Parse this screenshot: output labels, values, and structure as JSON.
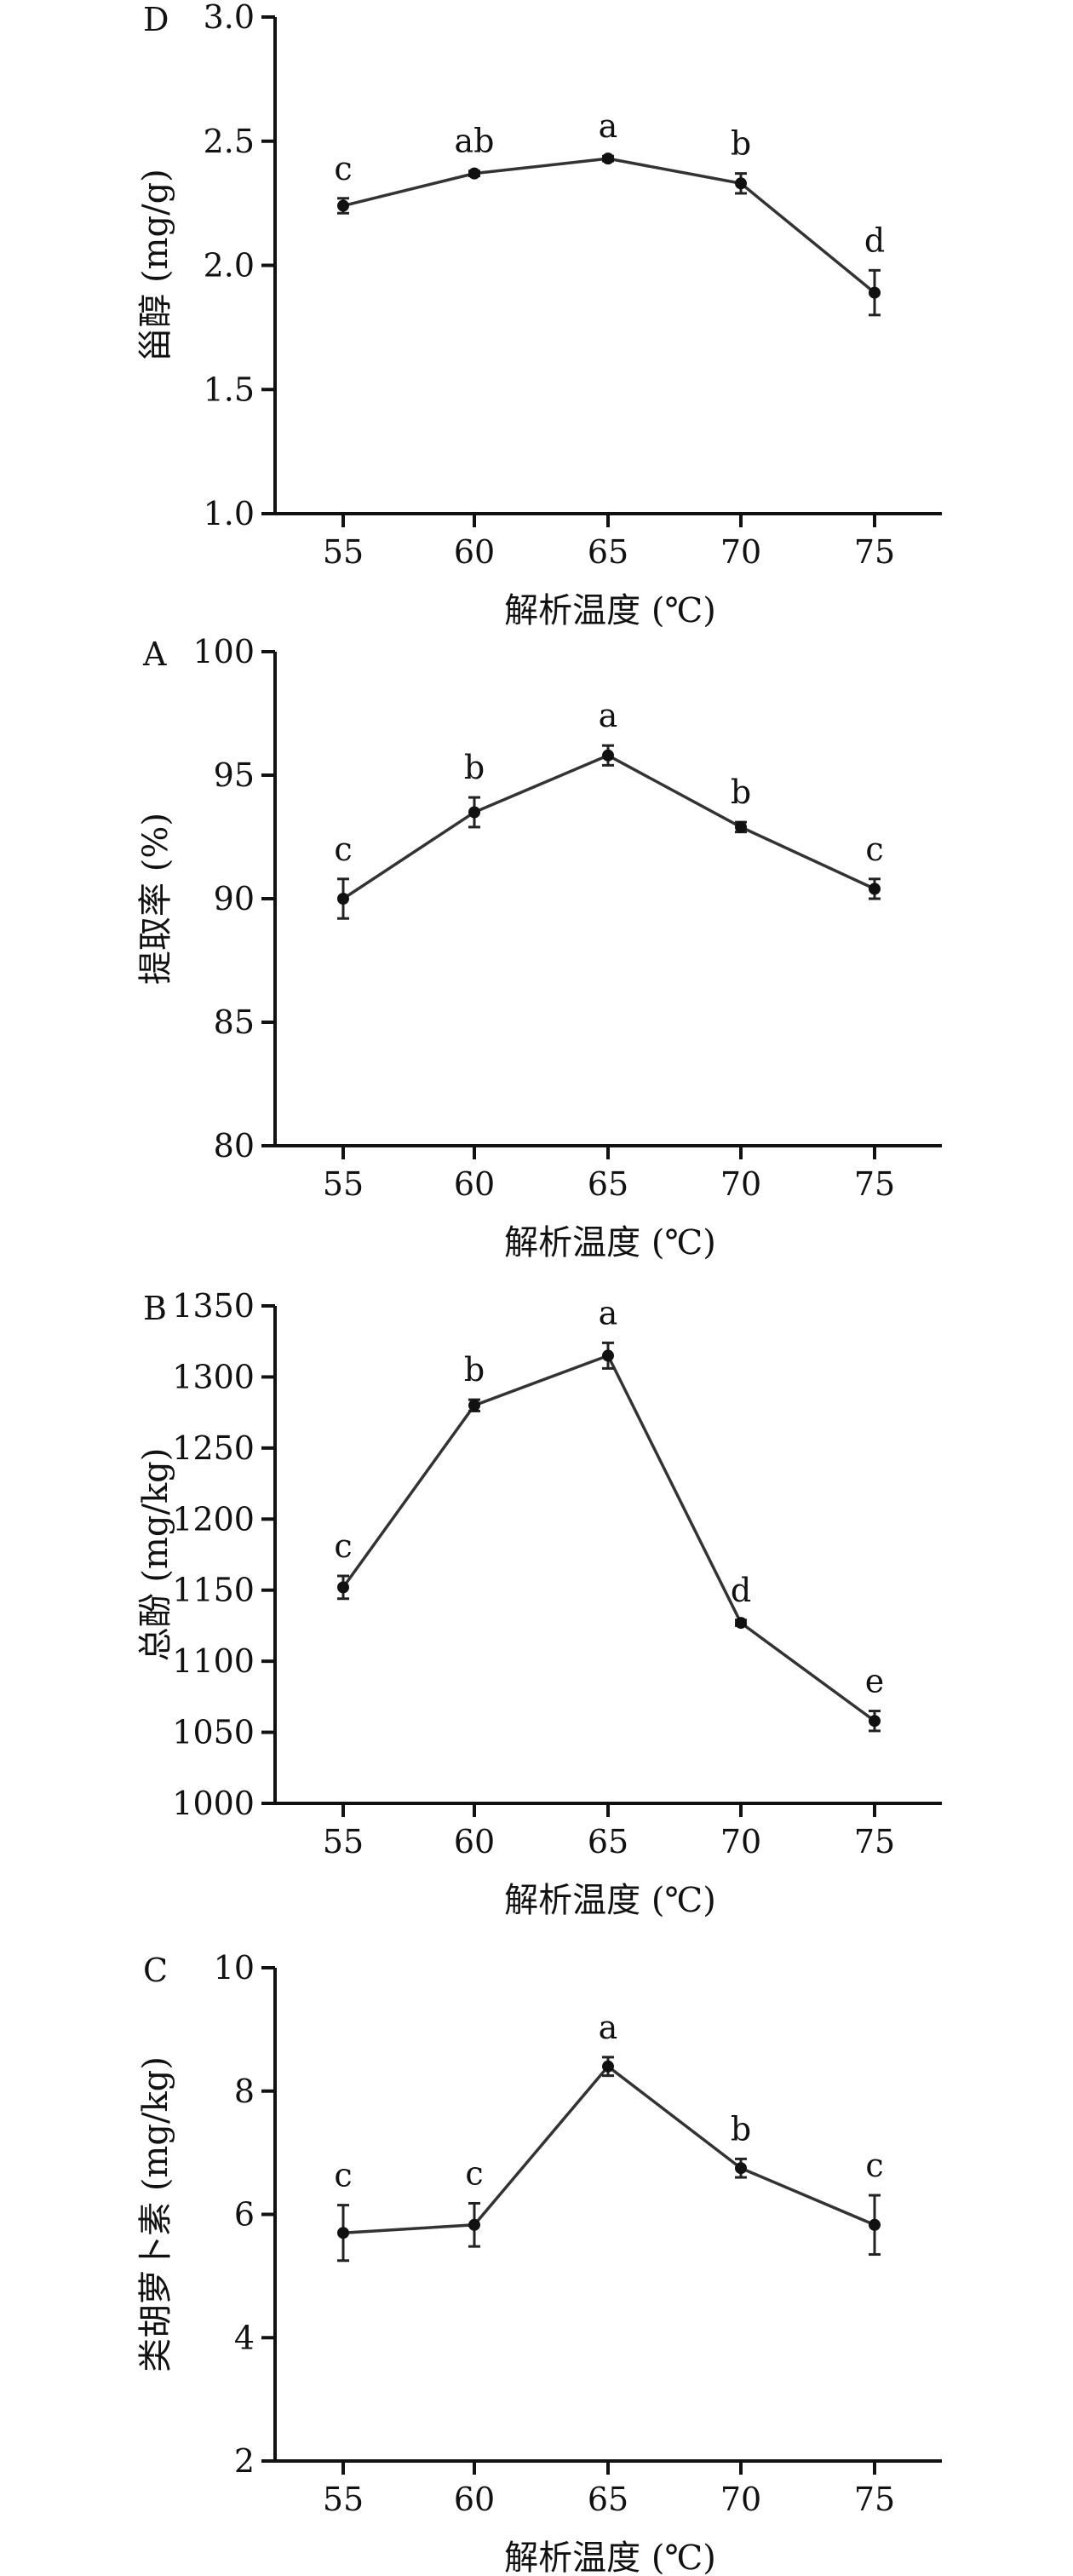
{
  "chart_data": [
    {
      "type": "line",
      "panel_label": "D",
      "x": [
        55,
        60,
        65,
        70,
        75
      ],
      "values": [
        2.24,
        2.37,
        2.43,
        2.33,
        1.89
      ],
      "error": [
        0.03,
        0.01,
        0.01,
        0.04,
        0.09
      ],
      "letters": [
        "c",
        "ab",
        "a",
        "b",
        "d"
      ],
      "xlabel": "解析温度 (℃)",
      "ylabel": "甾醇 (mg/g)",
      "yticks": [
        "1.0",
        "1.5",
        "2.0",
        "2.5",
        "3.0"
      ],
      "ylim": [
        1.0,
        3.0
      ],
      "xticks": [
        "55",
        "60",
        "65",
        "70",
        "75"
      ]
    },
    {
      "type": "line",
      "panel_label": "A",
      "x": [
        55,
        60,
        65,
        70,
        75
      ],
      "values": [
        90.0,
        93.5,
        95.8,
        92.9,
        90.4
      ],
      "error": [
        0.8,
        0.6,
        0.4,
        0.2,
        0.4
      ],
      "letters": [
        "c",
        "b",
        "a",
        "b",
        "c"
      ],
      "xlabel": "解析温度 (℃)",
      "ylabel": "提取率 (%)",
      "yticks": [
        "80",
        "85",
        "90",
        "95",
        "100"
      ],
      "ylim": [
        80,
        100
      ],
      "xticks": [
        "55",
        "60",
        "65",
        "70",
        "75"
      ]
    },
    {
      "type": "line",
      "panel_label": "B",
      "x": [
        55,
        60,
        65,
        70,
        75
      ],
      "values": [
        1152,
        1280,
        1315,
        1127,
        1058
      ],
      "error": [
        8,
        4,
        9,
        2,
        7
      ],
      "letters": [
        "c",
        "b",
        "a",
        "d",
        "e"
      ],
      "xlabel": "解析温度 (℃)",
      "ylabel": "总酚 (mg/kg)",
      "yticks": [
        "1000",
        "1050",
        "1100",
        "1150",
        "1200",
        "1250",
        "1300",
        "1350"
      ],
      "ylim": [
        1000,
        1350
      ],
      "xticks": [
        "55",
        "60",
        "65",
        "70",
        "75"
      ]
    },
    {
      "type": "line",
      "panel_label": "C",
      "x": [
        55,
        60,
        65,
        70,
        75
      ],
      "values": [
        5.7,
        5.83,
        8.4,
        6.75,
        5.83
      ],
      "error": [
        0.45,
        0.35,
        0.15,
        0.15,
        0.48
      ],
      "letters": [
        "c",
        "c",
        "a",
        "b",
        "c"
      ],
      "xlabel": "解析温度 (℃)",
      "ylabel": "类胡萝卜素 (mg/kg)",
      "yticks": [
        "2",
        "4",
        "6",
        "8",
        "10"
      ],
      "ylim": [
        2,
        10
      ],
      "xticks": [
        "55",
        "60",
        "65",
        "70",
        "75"
      ]
    }
  ]
}
